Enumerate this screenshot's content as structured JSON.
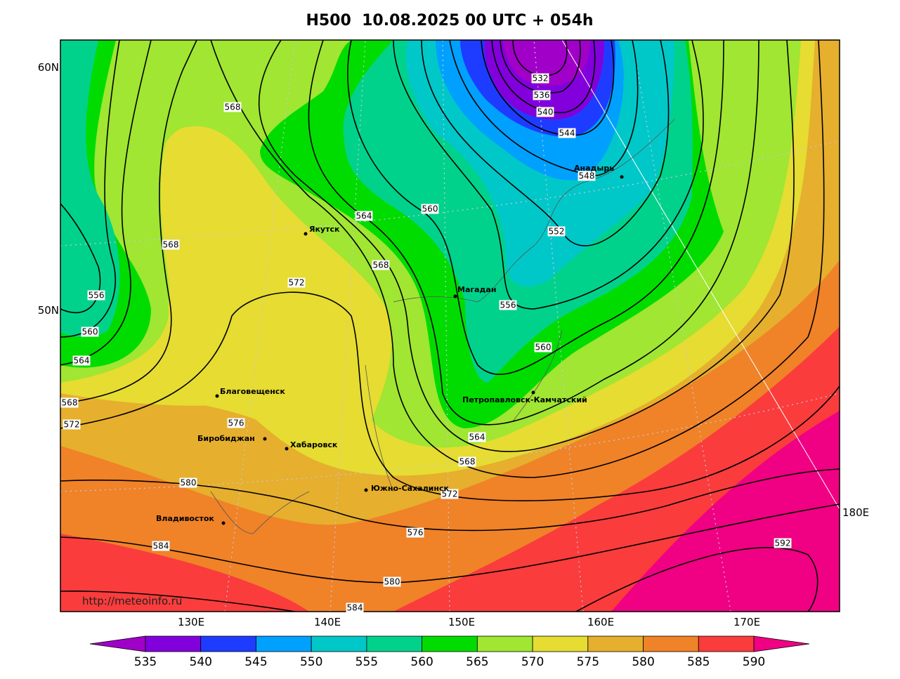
{
  "header": {
    "title": "H500  10.08.2025 00 UTC + 054h"
  },
  "map": {
    "lat_labels": [
      "60N",
      "50N"
    ],
    "lon_labels": [
      "130E",
      "140E",
      "150E",
      "160E",
      "170E",
      "180E"
    ],
    "cities": [
      "Якутск",
      "Магадан",
      "Анадырь",
      "Благовещенск",
      "Биробиджан",
      "Хабаровск",
      "Южно-Сахалинск",
      "Владивосток",
      "Петропавловск-Камчатский"
    ],
    "contour_labels": [
      "532",
      "536",
      "540",
      "544",
      "548",
      "552",
      "556",
      "560",
      "560",
      "564",
      "568",
      "572",
      "568",
      "568",
      "556",
      "560",
      "564",
      "568",
      "572",
      "576",
      "580",
      "584",
      "576",
      "572",
      "568",
      "564",
      "580",
      "584",
      "592"
    ],
    "credit": "http://meteoinfo.ru"
  },
  "colorbar": {
    "ticks": [
      535,
      540,
      545,
      550,
      555,
      560,
      565,
      570,
      575,
      580,
      585,
      590
    ],
    "colors": [
      "#a000c8",
      "#8200dc",
      "#1e3cff",
      "#00a0ff",
      "#00c8c8",
      "#00d28c",
      "#00dc00",
      "#a0e632",
      "#e6dc32",
      "#e6af2d",
      "#f08228",
      "#fa3c3c",
      "#f00082"
    ]
  }
}
